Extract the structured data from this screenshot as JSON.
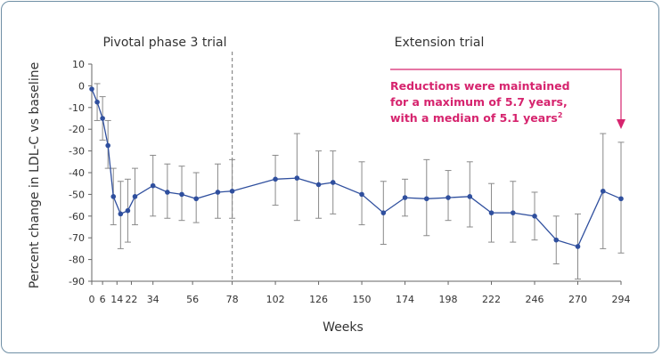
{
  "chart_data": {
    "type": "line",
    "xlabel": "Weeks",
    "ylabel": "Percent change in LDL-C vs baseline",
    "ylim": [
      -90,
      10
    ],
    "xlim": [
      0,
      294
    ],
    "yticks": [
      10,
      0,
      -10,
      -20,
      -30,
      -40,
      -50,
      -60,
      -70,
      -80,
      -90
    ],
    "xticks": [
      0,
      6,
      14,
      22,
      34,
      56,
      78,
      102,
      126,
      150,
      174,
      198,
      222,
      246,
      270,
      294
    ],
    "phase_labels": [
      "Pivotal phase 3 trial",
      "Extension trial"
    ],
    "phase_divider_week": 78,
    "annotation": {
      "lines": [
        "Reductions were maintained",
        "for a maximum of 5.7 years,",
        "with a median of 5.1 years"
      ],
      "superscript": "2"
    },
    "colors": {
      "series": "#2f4f9e",
      "error": "#8a8a8a",
      "annotation": "#d6246e",
      "divider": "#8a8a8a"
    },
    "series": [
      {
        "name": "LDL-C percent change",
        "x": [
          0,
          3,
          6,
          9,
          12,
          16,
          20,
          24,
          34,
          42,
          50,
          58,
          70,
          78,
          102,
          114,
          126,
          134,
          150,
          162,
          174,
          186,
          198,
          210,
          222,
          234,
          246,
          258,
          270,
          284,
          294
        ],
        "y": [
          -1.5,
          -7.5,
          -15,
          -27.5,
          -51,
          -59,
          -57.5,
          -51,
          -46,
          -49,
          -50,
          -52,
          -49,
          -48.5,
          -43,
          -42.5,
          -45.5,
          -44.5,
          -50,
          -58.5,
          -51.5,
          -52,
          -51.5,
          -51,
          -58.5,
          -58.5,
          -60,
          -71,
          -74,
          -48.5,
          -52
        ],
        "err_high": [
          -1.5,
          1,
          -5,
          -16,
          -38,
          -44,
          -43,
          -38,
          -32,
          -36,
          -37,
          -40,
          -36,
          -34,
          -32,
          -22,
          -30,
          -30,
          -35,
          -44,
          -43,
          -34,
          -39,
          -35,
          -45,
          -44,
          -49,
          -60,
          -59,
          -22,
          -26
        ],
        "err_low": [
          -1.5,
          -16,
          -25,
          -38,
          -64,
          -75,
          -72,
          -64,
          -60,
          -61,
          -62,
          -63,
          -61,
          -61,
          -55,
          -62,
          -61,
          -59,
          -64,
          -73,
          -60,
          -69,
          -62,
          -65,
          -72,
          -72,
          -71,
          -82,
          -89,
          -75,
          -77
        ]
      }
    ]
  }
}
